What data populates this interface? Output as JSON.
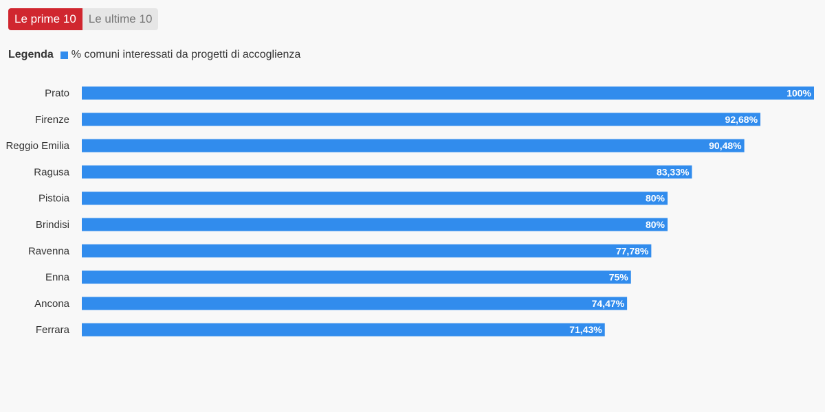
{
  "tabs": [
    {
      "label": "Le prime 10",
      "active": true
    },
    {
      "label": "Le ultime 10",
      "active": false
    }
  ],
  "legend": {
    "title": "Legenda",
    "label": "% comuni interessati da progetti di accoglienza"
  },
  "colors": {
    "bar": "#318CED",
    "tab_active": "#D0262F"
  },
  "chart_data": {
    "type": "bar",
    "orientation": "horizontal",
    "categories": [
      "Prato",
      "Firenze",
      "Reggio Emilia",
      "Ragusa",
      "Pistoia",
      "Brindisi",
      "Ravenna",
      "Enna",
      "Ancona",
      "Ferrara"
    ],
    "series": [
      {
        "name": "% comuni interessati da progetti di accoglienza",
        "values": [
          100,
          92.68,
          90.48,
          83.33,
          80,
          80,
          77.78,
          75,
          74.47,
          71.43
        ],
        "labels": [
          "100%",
          "92,68%",
          "90,48%",
          "83,33%",
          "80%",
          "80%",
          "77,78%",
          "75%",
          "74,47%",
          "71,43%"
        ]
      }
    ],
    "xlim": [
      0,
      100
    ],
    "grid": false
  }
}
